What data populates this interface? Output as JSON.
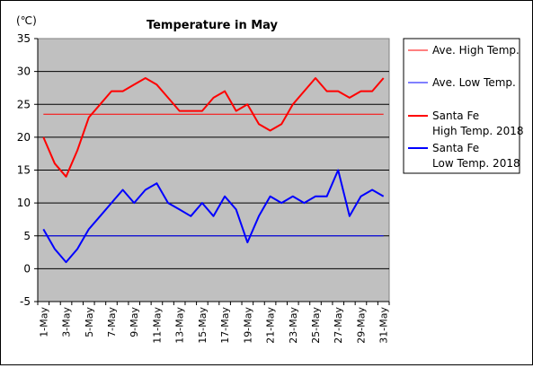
{
  "chart_data": {
    "type": "line",
    "title": "Temperature in May",
    "ylabel": "(℃)",
    "xlabel": "",
    "ylim": [
      -5,
      35
    ],
    "yticks": [
      -5,
      0,
      5,
      10,
      15,
      20,
      25,
      30,
      35
    ],
    "grid": true,
    "legend_placement": "right",
    "categories": [
      "1-May",
      "2-May",
      "3-May",
      "4-May",
      "5-May",
      "6-May",
      "7-May",
      "8-May",
      "9-May",
      "10-May",
      "11-May",
      "12-May",
      "13-May",
      "14-May",
      "15-May",
      "16-May",
      "17-May",
      "18-May",
      "19-May",
      "20-May",
      "21-May",
      "22-May",
      "23-May",
      "24-May",
      "25-May",
      "26-May",
      "27-May",
      "28-May",
      "29-May",
      "30-May",
      "31-May"
    ],
    "x_tick_labels": [
      "1-May",
      "3-May",
      "5-May",
      "7-May",
      "9-May",
      "11-May",
      "13-May",
      "15-May",
      "17-May",
      "19-May",
      "21-May",
      "23-May",
      "25-May",
      "27-May",
      "29-May",
      "31-May"
    ],
    "plot_background": "#c0c0c0",
    "series": [
      {
        "name": "Ave. High Temp.",
        "color": "#ff0000",
        "width": 1,
        "values": [
          23.5,
          23.5,
          23.5,
          23.5,
          23.5,
          23.5,
          23.5,
          23.5,
          23.5,
          23.5,
          23.5,
          23.5,
          23.5,
          23.5,
          23.5,
          23.5,
          23.5,
          23.5,
          23.5,
          23.5,
          23.5,
          23.5,
          23.5,
          23.5,
          23.5,
          23.5,
          23.5,
          23.5,
          23.5,
          23.5,
          23.5
        ]
      },
      {
        "name": "Ave. Low Temp.",
        "color": "#0000ff",
        "width": 1,
        "values": [
          5,
          5,
          5,
          5,
          5,
          5,
          5,
          5,
          5,
          5,
          5,
          5,
          5,
          5,
          5,
          5,
          5,
          5,
          5,
          5,
          5,
          5,
          5,
          5,
          5,
          5,
          5,
          5,
          5,
          5,
          5
        ]
      },
      {
        "name": "Santa Fe High Temp. 2018",
        "legend_lines": [
          "Santa Fe",
          "High Temp. 2018"
        ],
        "color": "#ff0000",
        "width": 2,
        "values": [
          20,
          16,
          14,
          18,
          23,
          25,
          27,
          27,
          28,
          29,
          28,
          26,
          24,
          24,
          24,
          26,
          27,
          24,
          25,
          22,
          21,
          22,
          25,
          27,
          29,
          27,
          27,
          26,
          27,
          27,
          29
        ]
      },
      {
        "name": "Santa Fe Low Temp. 2018",
        "legend_lines": [
          "Santa Fe",
          "Low Temp. 2018"
        ],
        "color": "#0000ff",
        "width": 2,
        "values": [
          6,
          3,
          1,
          3,
          6,
          8,
          10,
          12,
          10,
          12,
          13,
          10,
          9,
          8,
          10,
          8,
          11,
          9,
          4,
          8,
          11,
          10,
          11,
          10,
          11,
          11,
          15,
          8,
          11,
          12,
          11
        ]
      }
    ]
  }
}
